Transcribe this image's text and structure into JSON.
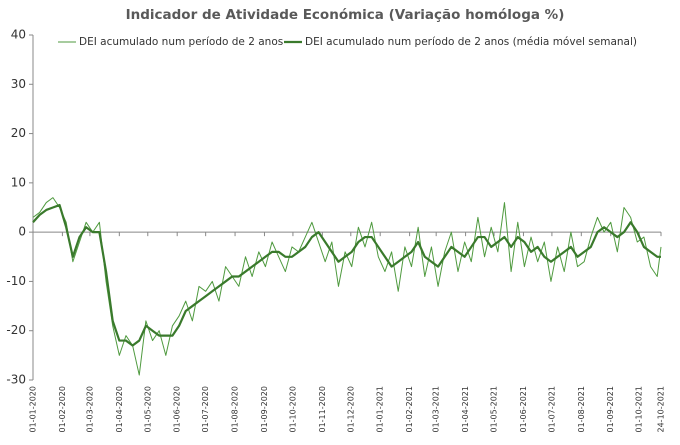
{
  "chart_data": {
    "type": "line",
    "title": "Indicador de Atividade Económica (Variação homóloga %)",
    "x": [
      "2020-01-01",
      "2020-01-08",
      "2020-01-15",
      "2020-01-22",
      "2020-01-29",
      "2020-02-05",
      "2020-02-12",
      "2020-02-19",
      "2020-02-26",
      "2020-03-04",
      "2020-03-11",
      "2020-03-18",
      "2020-03-25",
      "2020-04-01",
      "2020-04-08",
      "2020-04-15",
      "2020-04-22",
      "2020-04-29",
      "2020-05-06",
      "2020-05-13",
      "2020-05-20",
      "2020-05-27",
      "2020-06-03",
      "2020-06-10",
      "2020-06-17",
      "2020-06-24",
      "2020-07-01",
      "2020-07-08",
      "2020-07-15",
      "2020-07-22",
      "2020-07-29",
      "2020-08-05",
      "2020-08-12",
      "2020-08-19",
      "2020-08-26",
      "2020-09-02",
      "2020-09-09",
      "2020-09-16",
      "2020-09-23",
      "2020-09-30",
      "2020-10-07",
      "2020-10-14",
      "2020-10-21",
      "2020-10-28",
      "2020-11-04",
      "2020-11-11",
      "2020-11-18",
      "2020-11-25",
      "2020-12-02",
      "2020-12-09",
      "2020-12-16",
      "2020-12-23",
      "2020-12-30",
      "2021-01-06",
      "2021-01-13",
      "2021-01-20",
      "2021-01-27",
      "2021-02-03",
      "2021-02-10",
      "2021-02-17",
      "2021-02-24",
      "2021-03-03",
      "2021-03-10",
      "2021-03-17",
      "2021-03-24",
      "2021-03-31",
      "2021-04-07",
      "2021-04-14",
      "2021-04-21",
      "2021-04-28",
      "2021-05-05",
      "2021-05-12",
      "2021-05-19",
      "2021-05-26",
      "2021-06-02",
      "2021-06-09",
      "2021-06-16",
      "2021-06-23",
      "2021-06-30",
      "2021-07-07",
      "2021-07-14",
      "2021-07-21",
      "2021-07-28",
      "2021-08-04",
      "2021-08-11",
      "2021-08-18",
      "2021-08-25",
      "2021-09-01",
      "2021-09-08",
      "2021-09-15",
      "2021-09-22",
      "2021-09-29",
      "2021-10-06",
      "2021-10-13",
      "2021-10-20",
      "2021-10-24"
    ],
    "series": [
      {
        "name": "DEI acumulado num período de 2 anos",
        "color": "#4f9a3f",
        "values": [
          3,
          4,
          6,
          7,
          5,
          2,
          -6,
          -2,
          2,
          0,
          2,
          -10,
          -19,
          -25,
          -21,
          -23,
          -29,
          -18,
          -22,
          -20,
          -25,
          -19,
          -17,
          -14,
          -18,
          -11,
          -12,
          -10,
          -14,
          -7,
          -9,
          -11,
          -5,
          -9,
          -4,
          -7,
          -2,
          -5,
          -8,
          -3,
          -4,
          -1,
          2,
          -2,
          -6,
          -2,
          -11,
          -4,
          -7,
          1,
          -3,
          2,
          -5,
          -8,
          -4,
          -12,
          -3,
          -7,
          1,
          -9,
          -3,
          -11,
          -4,
          0,
          -8,
          -2,
          -6,
          3,
          -5,
          1,
          -4,
          6,
          -8,
          2,
          -7,
          -1,
          -6,
          -2,
          -10,
          -3,
          -8,
          0,
          -7,
          -6,
          -1,
          3,
          0,
          2,
          -4,
          5,
          3,
          -2,
          -1,
          -7,
          -9,
          -3
        ]
      },
      {
        "name": "DEI acumulado num período de 2 anos (média móvel semanal)",
        "color": "#3a7a2c",
        "values": [
          2,
          3.5,
          4.5,
          5,
          5.5,
          1,
          -5,
          -1,
          1,
          0,
          0,
          -8,
          -18,
          -22,
          -22,
          -23,
          -22,
          -19,
          -20,
          -21,
          -21,
          -21,
          -19,
          -16,
          -15,
          -14,
          -13,
          -12,
          -11,
          -10,
          -9,
          -9,
          -8,
          -7,
          -6,
          -5,
          -4,
          -4,
          -5,
          -5,
          -4,
          -3,
          -1,
          0,
          -2,
          -4,
          -6,
          -5,
          -4,
          -2,
          -1,
          -1,
          -3,
          -5,
          -7,
          -6,
          -5,
          -4,
          -2,
          -5,
          -6,
          -7,
          -5,
          -3,
          -4,
          -5,
          -3,
          -1,
          -1,
          -3,
          -2,
          -1,
          -3,
          -1,
          -2,
          -4,
          -3,
          -5,
          -6,
          -5,
          -4,
          -3,
          -5,
          -4,
          -3,
          0,
          1,
          0,
          -1,
          0,
          2,
          0,
          -3,
          -4,
          -5,
          -5
        ]
      }
    ],
    "xlim": [
      "2020-01-01",
      "2021-10-24"
    ],
    "xticks": [
      {
        "value": "2020-01-01",
        "label": "01-01-2020"
      },
      {
        "value": "2020-02-01",
        "label": "01-02-2020"
      },
      {
        "value": "2020-03-01",
        "label": "01-03-2020"
      },
      {
        "value": "2020-04-01",
        "label": "01-04-2020"
      },
      {
        "value": "2020-05-01",
        "label": "01-05-2020"
      },
      {
        "value": "2020-06-01",
        "label": "01-06-2020"
      },
      {
        "value": "2020-07-01",
        "label": "01-07-2020"
      },
      {
        "value": "2020-08-01",
        "label": "01-08-2020"
      },
      {
        "value": "2020-09-01",
        "label": "01-09-2020"
      },
      {
        "value": "2020-10-01",
        "label": "01-10-2020"
      },
      {
        "value": "2020-11-01",
        "label": "01-11-2020"
      },
      {
        "value": "2020-12-01",
        "label": "01-12-2020"
      },
      {
        "value": "2021-01-01",
        "label": "01-01-2021"
      },
      {
        "value": "2021-02-01",
        "label": "01-02-2021"
      },
      {
        "value": "2021-03-01",
        "label": "01-03-2021"
      },
      {
        "value": "2021-04-01",
        "label": "01-04-2021"
      },
      {
        "value": "2021-05-01",
        "label": "01-05-2021"
      },
      {
        "value": "2021-06-01",
        "label": "01-06-2021"
      },
      {
        "value": "2021-07-01",
        "label": "01-07-2021"
      },
      {
        "value": "2021-08-01",
        "label": "01-08-2021"
      },
      {
        "value": "2021-09-01",
        "label": "01-09-2021"
      },
      {
        "value": "2021-10-01",
        "label": "01-10-2021"
      },
      {
        "value": "2021-10-24",
        "label": "24-10-2021"
      }
    ],
    "ylim": [
      -30,
      40
    ],
    "yticks": [
      -30,
      -20,
      -10,
      0,
      10,
      20,
      30,
      40
    ],
    "legend": "top"
  }
}
